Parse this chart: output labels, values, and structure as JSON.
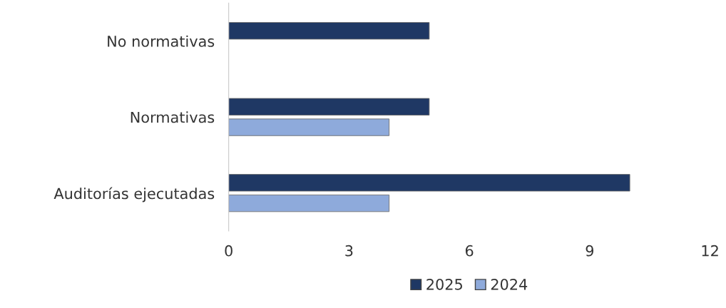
{
  "chart_data": {
    "type": "bar",
    "orientation": "horizontal",
    "categories": [
      "No normativas",
      "Normativas",
      "Auditorías ejecutadas"
    ],
    "series": [
      {
        "name": "2025",
        "color": "#1f3864",
        "values": [
          5,
          5,
          10
        ]
      },
      {
        "name": "2024",
        "color": "#8eaadb",
        "values": [
          null,
          4,
          4
        ]
      }
    ],
    "xlim": [
      0,
      12
    ],
    "xticks": [
      0,
      3,
      6,
      9,
      12
    ],
    "grid": false,
    "legend": "bottom"
  }
}
